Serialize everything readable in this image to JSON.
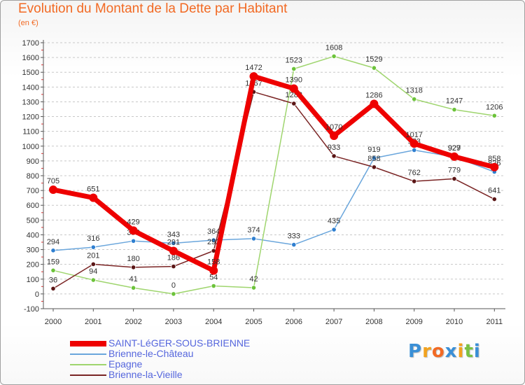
{
  "header": {
    "title": "Evolution du Montant de la Dette par Habitant",
    "subtitle": "(en €)"
  },
  "logo": {
    "text": "Proxiti",
    "letter_colors": [
      "#3a8fd6",
      "#f2a21e",
      "#f26a24",
      "#3a8fd6",
      "#f2a21e",
      "#7ac143",
      "#3a8fd6"
    ]
  },
  "chart_data": {
    "type": "line",
    "title": "Evolution du Montant de la Dette par Habitant",
    "subtitle": "(en €)",
    "xlabel": "",
    "ylabel": "",
    "ylim": [
      -100,
      1700
    ],
    "y_ticks": [
      -100,
      0,
      100,
      200,
      300,
      400,
      500,
      600,
      700,
      800,
      900,
      1000,
      1100,
      1200,
      1300,
      1400,
      1500,
      1600,
      1700
    ],
    "categories": [
      "2000",
      "2001",
      "2002",
      "2003",
      "2004",
      "2005",
      "2006",
      "2007",
      "2008",
      "2009",
      "2010",
      "2011"
    ],
    "grid": "horizontal dashed",
    "legend_position": "bottom-left",
    "series": [
      {
        "name": "Brienne-le-Château",
        "color": "#6aa6dc",
        "marker": "#2f7fd0",
        "values": [
          294,
          316,
          358,
          343,
          364,
          374,
          333,
          435,
          919,
          973,
          927,
          826
        ],
        "labels": [
          "294",
          "316",
          "358",
          "343",
          "364",
          "374",
          "333",
          "435",
          "919",
          "973",
          "927",
          "826"
        ]
      },
      {
        "name": "Epagne",
        "color": "#9fd56e",
        "marker": "#6cc33a",
        "values": [
          159,
          94,
          41,
          0,
          54,
          42,
          1523,
          1608,
          1529,
          1318,
          1247,
          1206
        ],
        "labels": [
          "159",
          "94",
          "41",
          "0",
          "54",
          "42",
          "1523",
          "1608",
          "1529",
          "1318",
          "1247",
          "1206"
        ]
      },
      {
        "name": "Brienne-la-Vieille",
        "color": "#7a2424",
        "marker": "#5a1515",
        "values": [
          36,
          201,
          180,
          186,
          292,
          1367,
          1288,
          933,
          858,
          762,
          779,
          641
        ],
        "labels": [
          "36",
          "201",
          "180",
          "186",
          "292",
          "1367",
          "1288",
          "933",
          "858",
          "762",
          "779",
          "641"
        ]
      },
      {
        "name": "SAINT-LéGER-SOUS-BRIENNE",
        "color": "#ee0000",
        "marker": "#ee0000",
        "values": [
          705,
          651,
          429,
          291,
          158,
          1472,
          1390,
          1070,
          1286,
          1017,
          929,
          858
        ],
        "labels": [
          "705",
          "651",
          "429",
          "291",
          "158",
          "1472",
          "1390",
          "1070",
          "1286",
          "1017",
          "929",
          "858"
        ]
      }
    ]
  },
  "legend": {
    "entries": [
      {
        "label": "SAINT-LéGER-SOUS-BRIENNE",
        "color": "#ee0000"
      },
      {
        "label": "Brienne-le-Château",
        "color": "#6aa6dc"
      },
      {
        "label": "Epagne",
        "color": "#9fd56e"
      },
      {
        "label": "Brienne-la-Vieille",
        "color": "#7a2424"
      }
    ]
  }
}
